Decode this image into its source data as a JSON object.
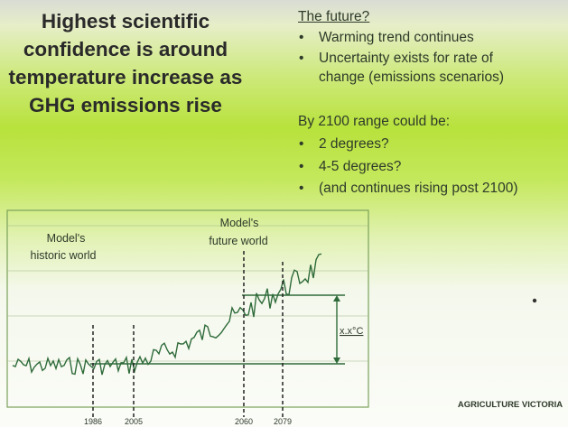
{
  "left_heading": {
    "lines": [
      "Highest scientific",
      "confidence is around",
      "temperature increase as",
      "GHG emissions rise"
    ]
  },
  "future": {
    "heading": "The future?",
    "bullets": [
      "Warming trend continues",
      "Uncertainty exists for rate of change (emissions scenarios)"
    ]
  },
  "range": {
    "heading": "By 2100 range could be:",
    "bullets": [
      "2 degrees?",
      "4-5 degrees?",
      "(and continues rising post 2100)"
    ]
  },
  "diagram": {
    "historic_label": [
      "Model's",
      "historic world"
    ],
    "future_label": [
      "Model's",
      "future world"
    ],
    "delta_label": "x.x°C",
    "years": [
      1986,
      2005,
      2060,
      2079
    ]
  },
  "logo": "AGRICULTURE VICTORIA"
}
